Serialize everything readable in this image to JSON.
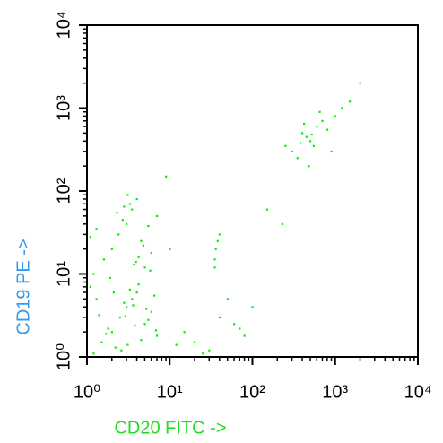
{
  "chart_data": {
    "type": "scatter",
    "xlabel": "CD20 FITC ->",
    "ylabel": "CD19 PE ->",
    "xlim": [
      1,
      10000
    ],
    "ylim": [
      1,
      10000
    ],
    "log_x": true,
    "log_y": true,
    "minor_ticks": true,
    "xticks": [
      {
        "value": 1,
        "label": "10⁰"
      },
      {
        "value": 10,
        "label": "10¹"
      },
      {
        "value": 100,
        "label": "10²"
      },
      {
        "value": 1000,
        "label": "10³"
      },
      {
        "value": 10000,
        "label": "10⁴"
      }
    ],
    "yticks": [
      {
        "value": 1,
        "label": "10⁰"
      },
      {
        "value": 10,
        "label": "10¹"
      },
      {
        "value": 100,
        "label": "10²"
      },
      {
        "value": 1000,
        "label": "10³"
      },
      {
        "value": 10000,
        "label": "10⁴"
      }
    ],
    "color": "#00ee00",
    "xlabel_color": "#22dd22",
    "ylabel_color": "#3399ee",
    "x": [
      1.2,
      1.5,
      2,
      2.5,
      3,
      3.5,
      4,
      5,
      6,
      7,
      1.1,
      1.8,
      2.2,
      2.8,
      3.3,
      4.5,
      5.5,
      6.5,
      1.4,
      2.6,
      3.8,
      4.2,
      1.3,
      2.1,
      3.1,
      5.2,
      6.8,
      1.7,
      2.9,
      3.6,
      1.2,
      1.6,
      2,
      2.4,
      3,
      3.5,
      4,
      4.5,
      5,
      6,
      7,
      1.3,
      1.9,
      2.7,
      3.3,
      3.9,
      4.8,
      5.8,
      1.1,
      2.3,
      3.1,
      4.2,
      5.5,
      2.8,
      3.7,
      300,
      400,
      500,
      600,
      700,
      450,
      550,
      350,
      800,
      1000,
      250,
      650,
      380,
      520,
      1500,
      2000,
      1200,
      480,
      420,
      900,
      15,
      20,
      30,
      40,
      60,
      80,
      100,
      25,
      35,
      50,
      12,
      70,
      36,
      38,
      40,
      35,
      150,
      230,
      9,
      10
    ],
    "values": [
      1.1,
      1.5,
      2,
      3,
      4,
      5,
      6,
      2.5,
      3.5,
      1.8,
      7,
      2.2,
      1.3,
      4.5,
      6.5,
      1.6,
      2.8,
      5.5,
      3.2,
      1.2,
      2.4,
      7.5,
      5,
      6,
      1.4,
      3.8,
      2.1,
      1.9,
      3.1,
      4.2,
      10,
      15,
      20,
      30,
      40,
      60,
      80,
      25,
      12,
      18,
      50,
      35,
      9,
      45,
      70,
      14,
      22,
      11,
      28,
      55,
      90,
      16,
      38,
      65,
      13,
      300,
      500,
      400,
      600,
      700,
      450,
      350,
      250,
      550,
      800,
      350,
      900,
      380,
      480,
      1200,
      2000,
      1000,
      200,
      650,
      300,
      2,
      1.5,
      1.2,
      3,
      2.5,
      1.8,
      4,
      1.1,
      15,
      5,
      1.4,
      2.2,
      20,
      25,
      30,
      12,
      60,
      40,
      150,
      20
    ]
  }
}
